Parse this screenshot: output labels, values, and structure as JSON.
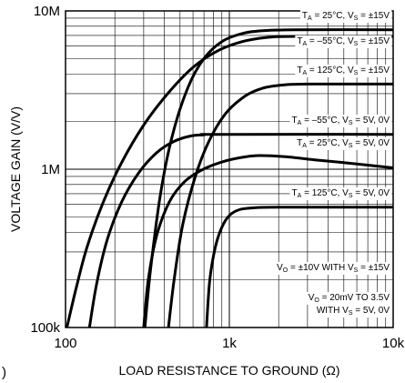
{
  "chart_data": {
    "type": "line",
    "xlabel": "LOAD RESISTANCE TO GROUND (Ω)",
    "ylabel": "VOLTAGE GAIN (V/V)",
    "xscale": "log",
    "yscale": "log",
    "xlim": [
      100,
      10000
    ],
    "ylim": [
      100000,
      10000000
    ],
    "grid": true,
    "x_ticks": [
      {
        "value": 100,
        "label": "100"
      },
      {
        "value": 1000,
        "label": "1k"
      },
      {
        "value": 10000,
        "label": "10k"
      }
    ],
    "y_ticks": [
      {
        "value": 100000,
        "label": "100k"
      },
      {
        "value": 1000000,
        "label": "1M"
      },
      {
        "value": 10000000,
        "label": "10M"
      }
    ],
    "series": [
      {
        "label": {
          "t": "T",
          "ts": "A",
          "mid": " = 25°C, V",
          "vs": "S",
          "rest": " = ±15V"
        },
        "x": [
          305,
          330,
          380,
          450,
          560,
          700,
          900,
          1200,
          1600,
          2500,
          10000
        ],
        "y": [
          100000,
          230000,
          700000,
          1650000,
          3300000,
          5000000,
          6400000,
          7200000,
          7500000,
          7600000,
          7600000
        ]
      },
      {
        "label": {
          "t": "T",
          "ts": "A",
          "mid": " = –55°C, V",
          "vs": "S",
          "rest": " = ±15V"
        },
        "x": [
          102,
          115,
          135,
          170,
          220,
          300,
          420,
          600,
          850,
          1200,
          1700,
          2500,
          10000
        ],
        "y": [
          100000,
          170000,
          320000,
          620000,
          1100000,
          1900000,
          3000000,
          4400000,
          5600000,
          6400000,
          6800000,
          6900000,
          6900000
        ]
      },
      {
        "label": {
          "t": "T",
          "ts": "A",
          "mid": " = 125°C, V",
          "vs": "S",
          "rest": " = ±15V"
        },
        "x": [
          425,
          460,
          520,
          620,
          750,
          950,
          1250,
          1600,
          2100,
          3000,
          10000
        ],
        "y": [
          100000,
          200000,
          450000,
          900000,
          1500000,
          2250000,
          2900000,
          3250000,
          3400000,
          3450000,
          3450000
        ]
      },
      {
        "label": {
          "t": "T",
          "ts": "A",
          "mid": " = –55°C, V",
          "vs": "S",
          "rest": " = 5V, 0V"
        },
        "x": [
          140,
          155,
          180,
          220,
          280,
          360,
          460,
          580,
          700,
          850,
          10000
        ],
        "y": [
          100000,
          190000,
          360000,
          620000,
          950000,
          1270000,
          1500000,
          1620000,
          1650000,
          1660000,
          1660000
        ]
      },
      {
        "label": {
          "t": "T",
          "ts": "A",
          "mid": " = 25°C, V",
          "vs": "S",
          "rest": " = 5V, 0V"
        },
        "x": [
          300,
          320,
          360,
          430,
          530,
          680,
          900,
          1150,
          1500,
          2200,
          3500,
          6000,
          10000
        ],
        "y": [
          100000,
          200000,
          380000,
          620000,
          830000,
          990000,
          1110000,
          1180000,
          1220000,
          1200000,
          1140000,
          1080000,
          1020000
        ]
      },
      {
        "label": {
          "t": "T",
          "ts": "A",
          "mid": " = 125°C, V",
          "vs": "S",
          "rest": " = 5V, 0V"
        },
        "x": [
          725,
          760,
          820,
          900,
          1000,
          1150,
          1400,
          2000,
          10000
        ],
        "y": [
          100000,
          200000,
          320000,
          430000,
          510000,
          555000,
          570000,
          575000,
          575000
        ]
      }
    ],
    "annotations": [
      {
        "p1": "V",
        "p1s": "O",
        "p2": " = ±10V WITH V",
        "p2s": "S",
        "p3": " = ±15V"
      },
      {
        "line1": {
          "p1": "V",
          "p1s": "O",
          "p2": " = 20mV TO 3.5V"
        },
        "line2": {
          "p1": "WITH V",
          "p1s": "S",
          "p2": " = 5V, 0V"
        }
      }
    ],
    "corner_mark": ")"
  }
}
